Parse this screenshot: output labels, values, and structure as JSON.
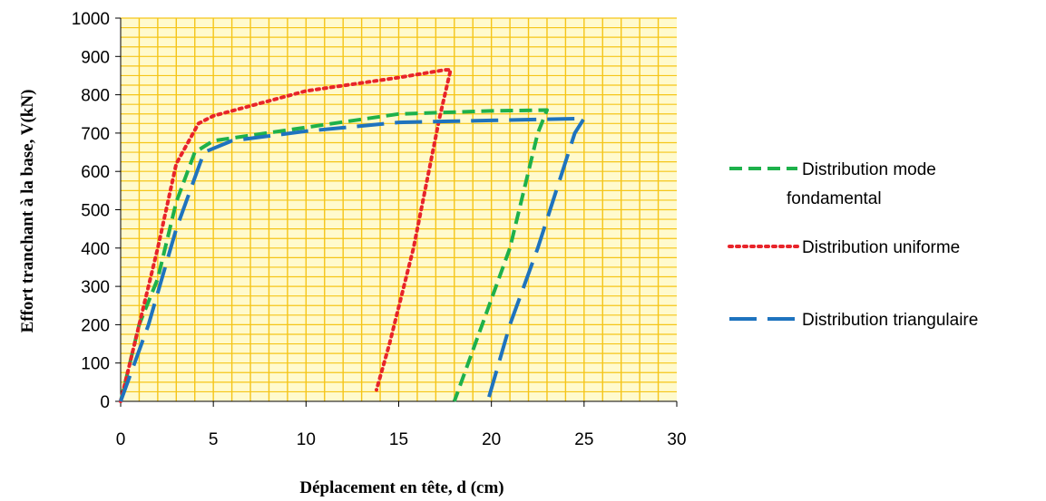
{
  "chart_data": {
    "type": "line",
    "xlabel": "Déplacement en tête, d (cm)",
    "ylabel": "Effort tranchant à la base, V(kN)",
    "xlim": [
      0,
      30
    ],
    "ylim": [
      0,
      1000
    ],
    "xticks": [
      0,
      5,
      10,
      15,
      20,
      25,
      30
    ],
    "yticks": [
      0,
      100,
      200,
      300,
      400,
      500,
      600,
      700,
      800,
      900,
      1000
    ],
    "grid": true,
    "plot_background": "#FFFACD",
    "grid_color": "#F5C518",
    "legend_position": "right",
    "series": [
      {
        "name": "Distribution mode fondamental",
        "color": "#1DB14B",
        "dash": "dashed",
        "points": [
          [
            0,
            0
          ],
          [
            1,
            200
          ],
          [
            2,
            320
          ],
          [
            3,
            520
          ],
          [
            4,
            650
          ],
          [
            5,
            680
          ],
          [
            10,
            715
          ],
          [
            15,
            750
          ],
          [
            20,
            758
          ],
          [
            23,
            760
          ],
          [
            22.5,
            700
          ],
          [
            21,
            400
          ],
          [
            19.5,
            200
          ],
          [
            18,
            0
          ]
        ]
      },
      {
        "name": "Distribution uniforme",
        "color": "#E8242A",
        "dash": "dotted",
        "points": [
          [
            0,
            0
          ],
          [
            1,
            200
          ],
          [
            2,
            400
          ],
          [
            3,
            620
          ],
          [
            4.2,
            725
          ],
          [
            5,
            745
          ],
          [
            10,
            810
          ],
          [
            15,
            845
          ],
          [
            17.5,
            865
          ],
          [
            17.8,
            865
          ],
          [
            17.2,
            740
          ],
          [
            15.8,
            400
          ],
          [
            14.5,
            150
          ],
          [
            13.8,
            30
          ]
        ]
      },
      {
        "name": "Distribution triangulaire",
        "color": "#1E73BE",
        "dash": "long-dash",
        "points": [
          [
            0,
            0
          ],
          [
            1.5,
            200
          ],
          [
            3,
            450
          ],
          [
            4.5,
            650
          ],
          [
            6,
            680
          ],
          [
            10,
            705
          ],
          [
            15,
            728
          ],
          [
            20,
            733
          ],
          [
            25,
            738
          ],
          [
            24.5,
            700
          ],
          [
            22.5,
            400
          ],
          [
            21,
            200
          ],
          [
            19.8,
            0
          ]
        ]
      }
    ],
    "legend": [
      {
        "lines": [
          "Distribution mode",
          "fondamental"
        ]
      },
      {
        "lines": [
          "Distribution uniforme"
        ]
      },
      {
        "lines": [
          "Distribution triangulaire"
        ]
      }
    ]
  }
}
